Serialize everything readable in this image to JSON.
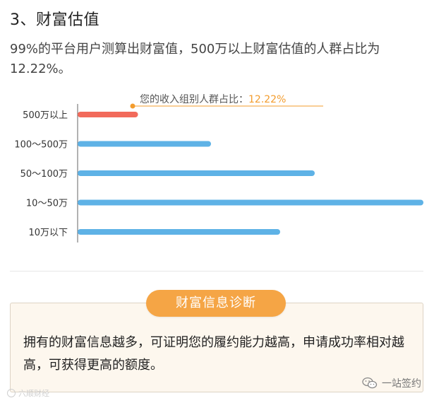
{
  "section_title": "3、财富估值",
  "intro_text": "99%的平台用户测算出财富值，500万以上财富估值的人群占比为12.22%。",
  "chart_data": {
    "type": "bar",
    "orientation": "horizontal",
    "categories": [
      "500万以上",
      "100～500万",
      "50～100万",
      "10～50万",
      "10万以下"
    ],
    "values": [
      12.22,
      27,
      48,
      70,
      41
    ],
    "xlim": [
      0,
      70
    ],
    "grid": false,
    "highlight_index": 0,
    "callout_label": "您的收入组别人群占比：",
    "callout_value": "12.22%",
    "colors": {
      "highlight": "#f26a5b",
      "default": "#5eb2e6",
      "callout": "#f39c2d",
      "axis": "#666666"
    }
  },
  "info_box": {
    "title": "财富信息诊断",
    "text": "拥有的财富信息越多，可证明您的履约能力越高，申请成功率相对越高，可获得更高的额度。"
  },
  "watermark_left": "六顺财经",
  "watermark_right": "一站签约"
}
